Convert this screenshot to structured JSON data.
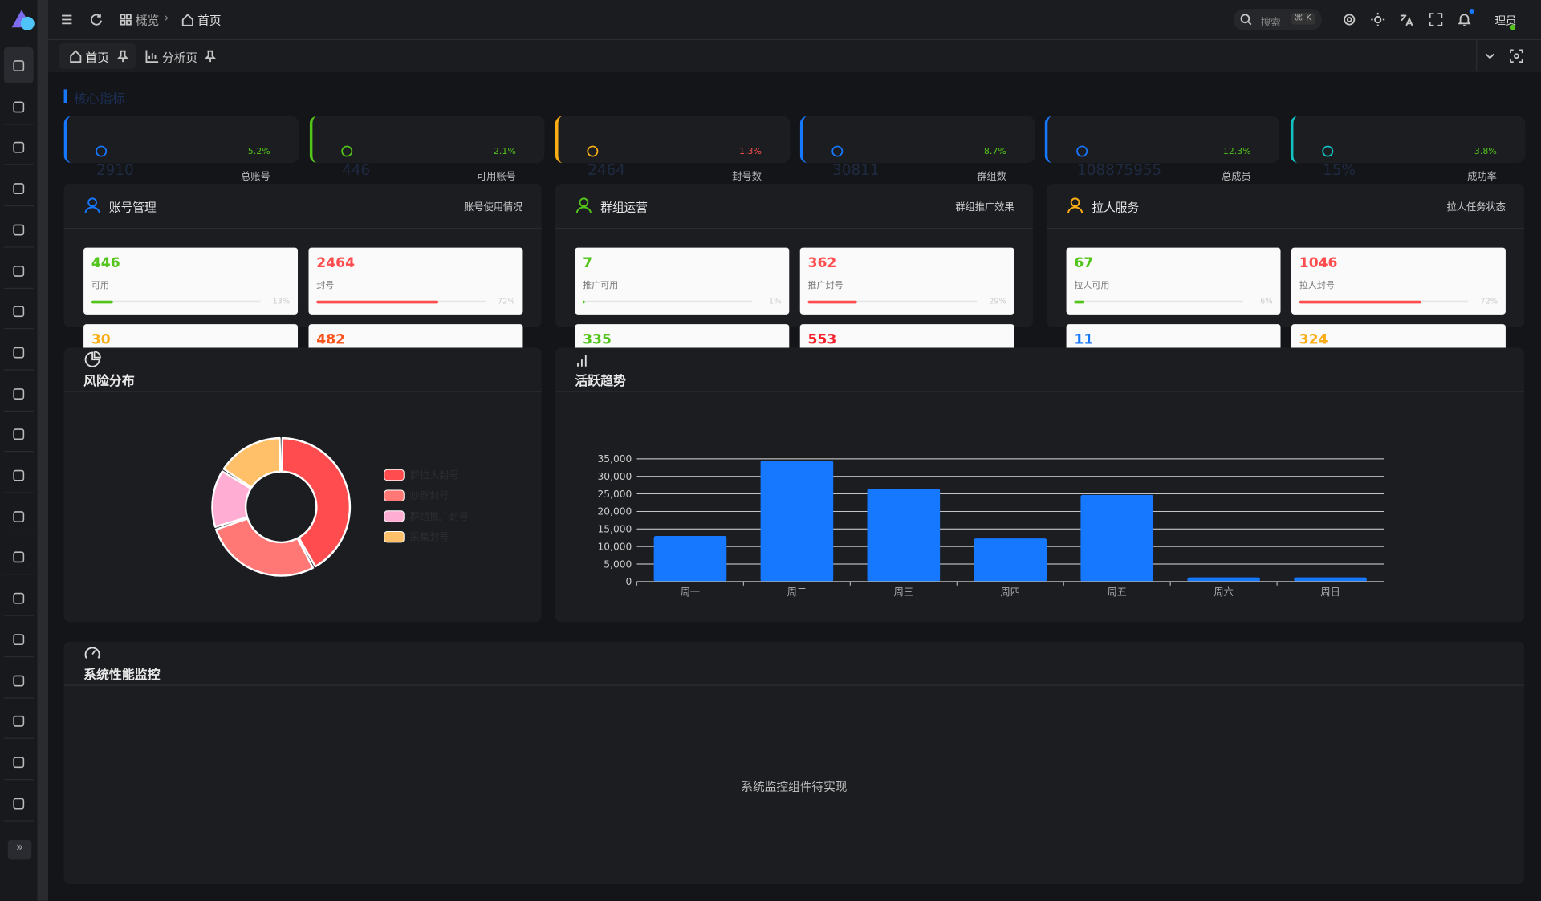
{
  "header": {
    "breadcrumb": [
      "概览",
      "首页"
    ],
    "search": "搜索",
    "shortcut": "⌘ K",
    "user": "理员"
  },
  "tabs": [
    "首页",
    "分析页"
  ],
  "section_title": "核心指标",
  "metrics": [
    {
      "value": 2910,
      "change": "5.2%",
      "label": "总账号",
      "color": "#1677ff",
      "change_color": "#52c41a"
    },
    {
      "value": 446,
      "change": "2.1%",
      "label": "可用账号",
      "color": "#52c41a",
      "change_color": "#52c41a"
    },
    {
      "value": 2464,
      "change": "1.3%",
      "label": "封号数",
      "color": "#faad14",
      "change_color": "#ff4d4f"
    },
    {
      "value": 30811,
      "change": "8.7%",
      "label": "群组数",
      "color": "#1677ff",
      "change_color": "#52c41a"
    },
    {
      "value": 108875955,
      "change": "12.3%",
      "label": "总成员",
      "color": "#1677ff",
      "change_color": "#52c41a"
    },
    {
      "value": "15%",
      "change": "3.8%",
      "label": "成功率",
      "color": "#13c2c2",
      "change_color": "#52c41a"
    }
  ],
  "panels": [
    {
      "title": "账号管理",
      "subtitle": "账号使用情况",
      "color": "#1677ff",
      "cards": [
        {
          "value": 446,
          "label": "可用",
          "progress": 13,
          "progress_label": "13%",
          "color": "#52c41a"
        },
        {
          "value": 2464,
          "label": "封号",
          "progress": 72,
          "progress_label": "72%",
          "color": "#ff4d4f"
        },
        {
          "value": 30,
          "color": "#faad14"
        },
        {
          "value": 482,
          "color": "#fa541c"
        }
      ]
    },
    {
      "title": "群组运营",
      "subtitle": "群组推广效果",
      "color": "#52c41a",
      "cards": [
        {
          "value": 7,
          "label": "推广可用",
          "progress": 1,
          "progress_label": "1%",
          "color": "#52c41a"
        },
        {
          "value": 362,
          "label": "推广封号",
          "progress": 29,
          "progress_label": "29%",
          "color": "#ff4d4f"
        },
        {
          "value": 335,
          "color": "#52c41a"
        },
        {
          "value": 553,
          "color": "#f5222d"
        }
      ]
    },
    {
      "title": "拉人服务",
      "subtitle": "拉人任务状态",
      "color": "#faad14",
      "cards": [
        {
          "value": 67,
          "label": "拉人可用",
          "progress": 6,
          "progress_label": "6%",
          "color": "#52c41a"
        },
        {
          "value": 1046,
          "label": "拉人封号",
          "progress": 72,
          "progress_label": "72%",
          "color": "#ff4d4f"
        },
        {
          "value": 11,
          "color": "#1677ff"
        },
        {
          "value": 324,
          "color": "#faad14"
        }
      ]
    }
  ],
  "risk_chart": {
    "type": "pie",
    "title": "风险分布",
    "categories": [
      "群拉人封号",
      "炒群封号",
      "群组推广封号",
      "采集封号"
    ],
    "values": [
      42,
      28,
      14,
      16
    ],
    "colors": [
      "#ff4d4f",
      "#ff7875",
      "#ffadd2",
      "#ffc069"
    ]
  },
  "activity_chart": {
    "type": "bar",
    "title": "活跃趋势",
    "categories": [
      "周一",
      "周二",
      "周三",
      "周四",
      "周五",
      "周六",
      "周日"
    ],
    "values": [
      13000,
      34500,
      26500,
      12300,
      24700,
      1200,
      1200
    ],
    "color": "#1677ff",
    "ylim": [
      0,
      35000
    ],
    "yticks": [
      0,
      {
        "value": 5000,
        "label": "5,000"
      },
      {
        "value": 10000,
        "label": "10,000"
      },
      {
        "value": 15000,
        "label": "15,000"
      },
      {
        "value": 20000,
        "label": "20,000"
      },
      {
        "value": 25000,
        "label": "25,000"
      },
      {
        "value": 30000,
        "label": "30,000"
      },
      {
        "value": 35000,
        "label": "35,000"
      }
    ],
    "grid": true
  },
  "monitor": {
    "title": "系统性能监控",
    "placeholder": "系统监控组件待实现"
  }
}
